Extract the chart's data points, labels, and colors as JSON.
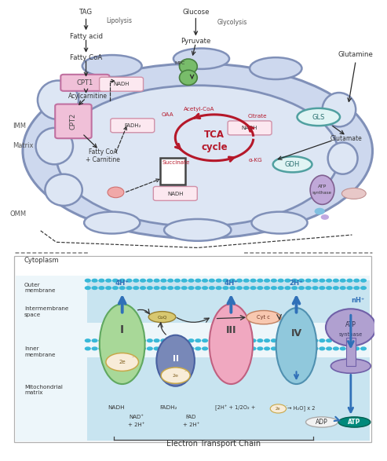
{
  "bg": "#ffffff",
  "mito_outer_fill": "#cdd8ee",
  "mito_outer_edge": "#8090b8",
  "mito_inner_fill": "#dde6f4",
  "tca_red": "#b5182a",
  "cpt_fill": "#f0c0d8",
  "cpt_edge": "#c070a0",
  "gls_fill": "#c8ecec",
  "gls_edge": "#50a0a0",
  "mpc_fill": "#78bc6a",
  "mpc_edge": "#488040",
  "nadh_fill": "#fce8f0",
  "nadh_edge": "#d090a8",
  "atp_purple": "#c0a8d8",
  "atp_edge": "#806090",
  "arrow_dark": "#2a2a2a",
  "blue_h": "#3070b8",
  "etc_bg": "#e4f2f8",
  "ims_bg": "#cce4f0",
  "dot_color": "#40b8d8",
  "c1_fill": "#a8d898",
  "c1_edge": "#60a860",
  "c2_fill": "#7888b8",
  "c2_edge": "#4860a0",
  "c3_fill": "#f0a8c0",
  "c3_edge": "#c06080",
  "c4_fill": "#90c8dc",
  "c4_edge": "#5090b0",
  "atps_fill": "#b0a0d0",
  "atps_edge": "#7060a8",
  "atp_teal": "#00897b",
  "coq_fill": "#d8c870",
  "coq_edge": "#988030",
  "cytc_fill": "#f8c8b0",
  "cytc_edge": "#c08060"
}
